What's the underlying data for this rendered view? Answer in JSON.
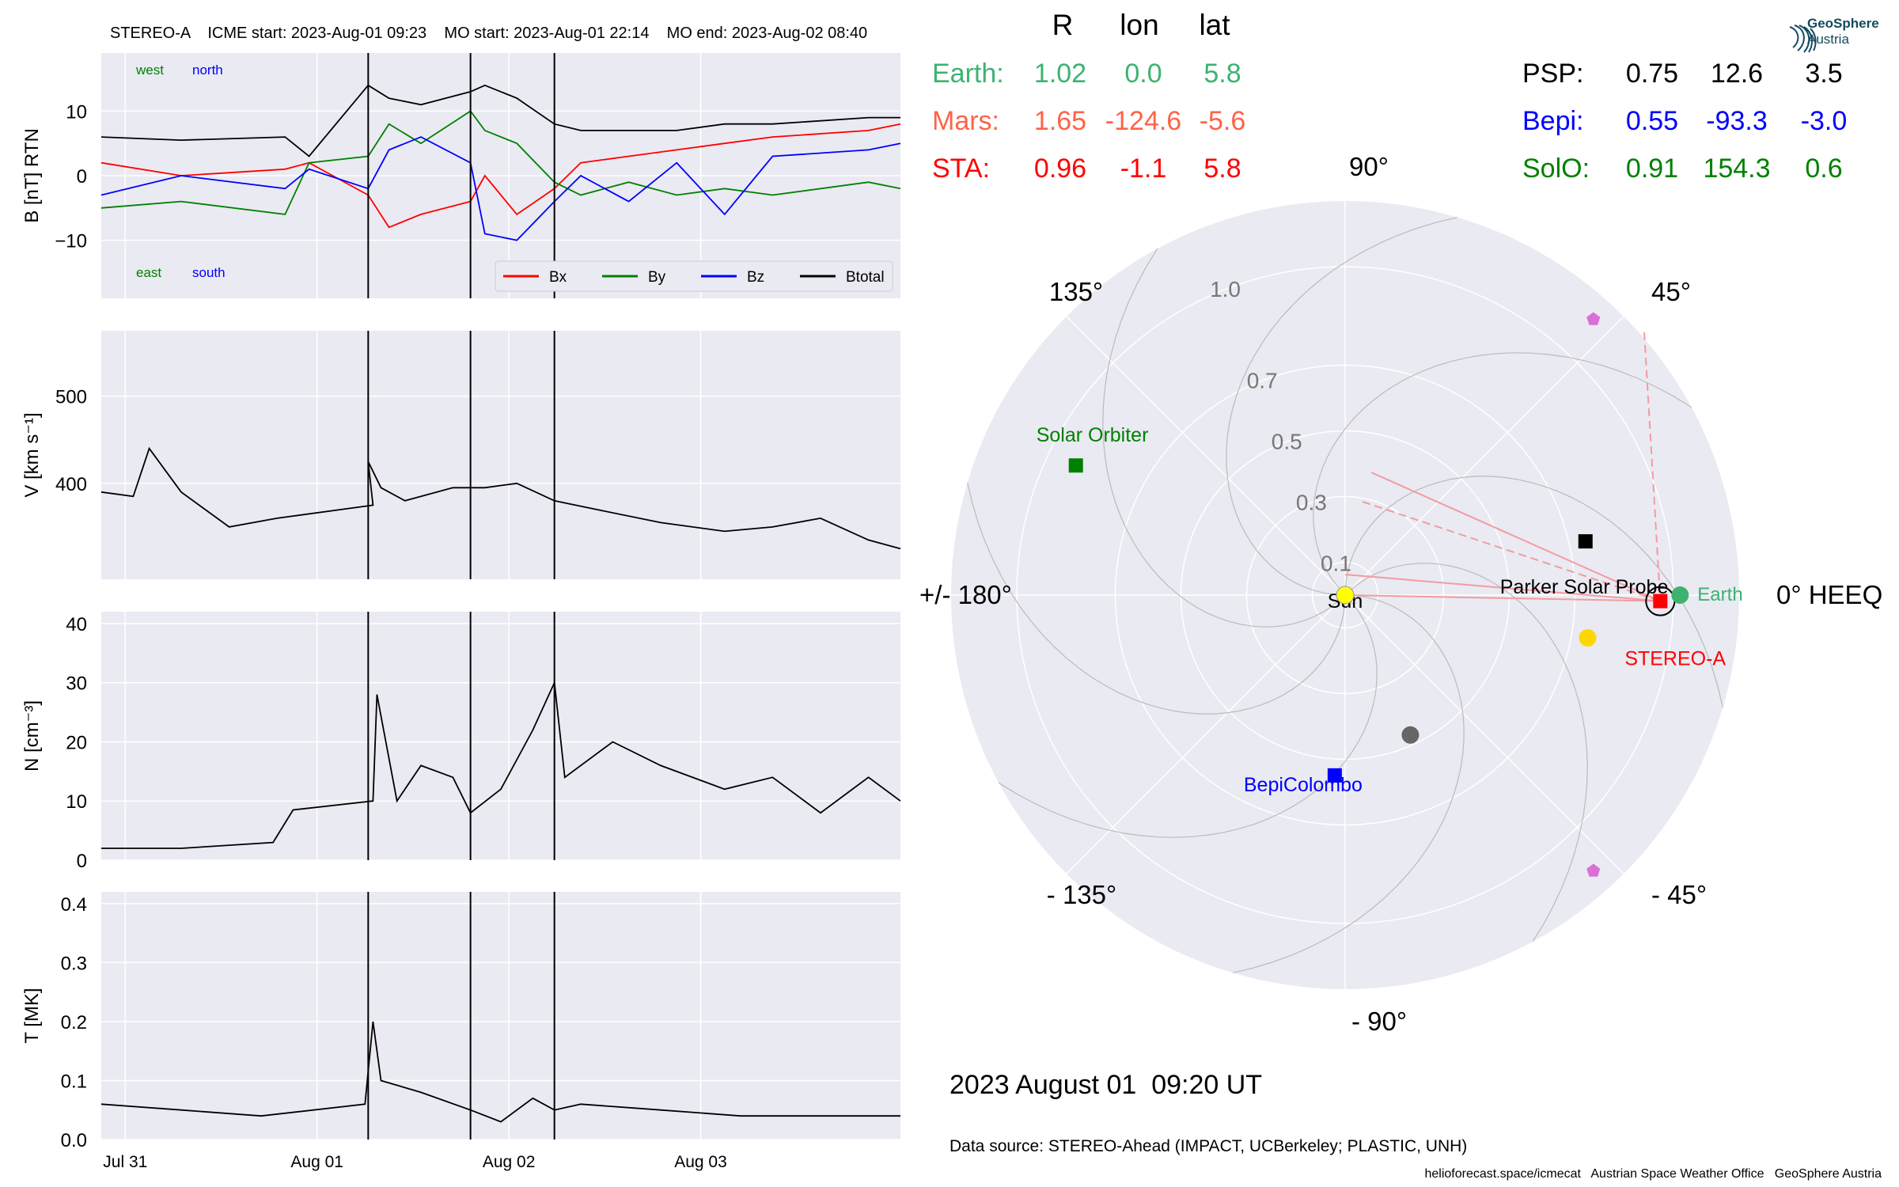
{
  "header": "STEREO-A    ICME start: 2023-Aug-01 09:23    MO start: 2023-Aug-01 22:14    MO end: 2023-Aug-02 08:40",
  "timeseries": {
    "x_ticks": [
      "Jul 31",
      "Aug 01",
      "Aug 02",
      "Aug 03"
    ],
    "event_lines_hours": [
      33.4,
      46.2,
      56.7
    ],
    "panels": [
      {
        "key": "B",
        "ylabel": "B [nT] RTN",
        "ylim": [
          -19,
          19
        ],
        "ticks": [
          10,
          0,
          -10
        ],
        "tick_labels": [
          "10",
          "0",
          "−10"
        ]
      },
      {
        "key": "V",
        "ylabel": "V [km s⁻¹]",
        "ylim": [
          290,
          575
        ],
        "ticks": [
          500,
          400
        ],
        "tick_labels": [
          "500",
          "400"
        ]
      },
      {
        "key": "N",
        "ylabel": "N [cm⁻³]",
        "ylim": [
          0,
          42
        ],
        "ticks": [
          40,
          30,
          20,
          10,
          0
        ],
        "tick_labels": [
          "40",
          "30",
          "20",
          "10",
          "0"
        ]
      },
      {
        "key": "T",
        "ylabel": "T [MK]",
        "ylim": [
          0,
          0.42
        ],
        "ticks": [
          0.4,
          0.3,
          0.2,
          0.1,
          0.0
        ],
        "tick_labels": [
          "0.4",
          "0.3",
          "0.2",
          "0.1",
          "0.0"
        ]
      }
    ],
    "b_annotations": {
      "west": "west",
      "north": "north",
      "east": "east",
      "south": "south"
    },
    "legend": [
      {
        "name": "Bx",
        "color": "#ff0000"
      },
      {
        "name": "By",
        "color": "#008000"
      },
      {
        "name": "Bz",
        "color": "#0000ff"
      },
      {
        "name": "Btotal",
        "color": "#000000"
      }
    ]
  },
  "chart_data": [
    {
      "type": "line",
      "title": "STEREO-A    ICME start: 2023-Aug-01 09:23    MO start: 2023-Aug-01 22:14    MO end: 2023-Aug-02 08:40",
      "ylabel": "B [nT] RTN",
      "x_axis": "time (hours since 2023-Jul-30 21:00 UT)",
      "ylim": [
        -19,
        19
      ],
      "series": [
        {
          "name": "Btotal",
          "color": "#000000",
          "x": [
            0,
            10,
            23,
            26,
            33.4,
            36,
            40,
            46.2,
            48,
            52,
            56.7,
            60,
            66,
            72,
            78,
            84,
            96,
            100
          ],
          "y": [
            6,
            5.5,
            6,
            3,
            14,
            12,
            11,
            13,
            14,
            12,
            8,
            7,
            7,
            7,
            8,
            8,
            9,
            9
          ]
        },
        {
          "name": "Bx",
          "color": "#ff0000",
          "x": [
            0,
            10,
            23,
            26,
            33.4,
            36,
            40,
            46.2,
            48,
            52,
            56.7,
            60,
            66,
            72,
            78,
            84,
            96,
            100
          ],
          "y": [
            2,
            0,
            1,
            2,
            -3,
            -8,
            -6,
            -4,
            0,
            -6,
            -2,
            2,
            3,
            4,
            5,
            6,
            7,
            8
          ]
        },
        {
          "name": "By",
          "color": "#008000",
          "x": [
            0,
            10,
            23,
            26,
            33.4,
            36,
            40,
            46.2,
            48,
            52,
            56.7,
            60,
            66,
            72,
            78,
            84,
            96,
            100
          ],
          "y": [
            -5,
            -4,
            -6,
            2,
            3,
            8,
            5,
            10,
            7,
            5,
            -1,
            -3,
            -1,
            -3,
            -2,
            -3,
            -1,
            -2
          ]
        },
        {
          "name": "Bz",
          "color": "#0000ff",
          "x": [
            0,
            10,
            23,
            26,
            33.4,
            36,
            40,
            46.2,
            48,
            52,
            56.7,
            60,
            66,
            72,
            78,
            84,
            96,
            100
          ],
          "y": [
            -3,
            0,
            -2,
            1,
            -2,
            4,
            6,
            2,
            -9,
            -10,
            -4,
            0,
            -4,
            2,
            -6,
            3,
            4,
            5
          ]
        }
      ]
    },
    {
      "type": "line",
      "ylabel": "V [km s⁻¹]",
      "ylim": [
        290,
        575
      ],
      "series": [
        {
          "name": "V",
          "color": "#000000",
          "x": [
            0,
            4,
            6,
            10,
            16,
            22,
            34,
            33.4,
            35,
            38,
            44,
            48,
            52,
            56.7,
            62,
            70,
            78,
            84,
            90,
            96,
            100
          ],
          "y": [
            390,
            385,
            440,
            390,
            350,
            360,
            375,
            425,
            395,
            380,
            395,
            395,
            400,
            380,
            370,
            355,
            345,
            350,
            360,
            335,
            325
          ]
        }
      ]
    },
    {
      "type": "line",
      "ylabel": "N [cm⁻³]",
      "ylim": [
        0,
        42
      ],
      "series": [
        {
          "name": "N",
          "color": "#000000",
          "x": [
            0,
            10,
            21.5,
            24,
            34,
            34.5,
            37,
            40,
            44,
            46.2,
            50,
            54,
            56.7,
            58,
            64,
            70,
            78,
            84,
            90,
            96,
            100
          ],
          "y": [
            2,
            2,
            3,
            8.5,
            10,
            28,
            10,
            16,
            14,
            8,
            12,
            22,
            30,
            14,
            20,
            16,
            12,
            14,
            8,
            14,
            10
          ]
        }
      ]
    },
    {
      "type": "line",
      "ylabel": "T [MK]",
      "ylim": [
        0,
        0.42
      ],
      "series": [
        {
          "name": "T",
          "color": "#000000",
          "x": [
            0,
            10,
            20,
            33,
            34,
            35,
            40,
            46.2,
            50,
            54,
            56.7,
            60,
            70,
            80,
            90,
            100
          ],
          "y": [
            0.06,
            0.05,
            0.04,
            0.06,
            0.2,
            0.1,
            0.08,
            0.05,
            0.03,
            0.07,
            0.05,
            0.06,
            0.05,
            0.04,
            0.04,
            0.04
          ]
        }
      ]
    }
  ],
  "polar": {
    "angle_labels": {
      "a90": "90°",
      "a45": "45°",
      "a0": "0° HEEQ",
      "am45": "- 45°",
      "am90": "- 90°",
      "am135": "- 135°",
      "a180": "+/- 180°",
      "a135": "135°"
    },
    "radial_labels": [
      "1.0",
      "0.7",
      "0.5",
      "0.3",
      "0.1"
    ],
    "radial_values": [
      1.0,
      0.7,
      0.5,
      0.3,
      0.1
    ],
    "rmax": 1.2,
    "bodies": [
      {
        "name": "Sun",
        "label": "Sun",
        "lon": 0,
        "r": 0,
        "color": "#ffff00",
        "shape": "circle"
      },
      {
        "name": "Earth",
        "label": "Earth",
        "lon": 0.0,
        "r": 1.02,
        "color": "#3cb371",
        "shape": "circle"
      },
      {
        "name": "STEREO-A",
        "label": "STEREO-A",
        "lon": -1.1,
        "r": 0.96,
        "color": "#ff0000",
        "shape": "square"
      },
      {
        "name": "Solar Orbiter",
        "label": "Solar Orbiter",
        "lon": 154.3,
        "r": 0.91,
        "color": "#008000",
        "shape": "square"
      },
      {
        "name": "BepiColombo",
        "label": "BepiColombo",
        "lon": -93.3,
        "r": 0.55,
        "color": "#0000ff",
        "shape": "square"
      },
      {
        "name": "Parker Solar Probe",
        "label": "Parker Solar Probe",
        "lon": 12.6,
        "r": 0.75,
        "color": "#000000",
        "shape": "square"
      }
    ],
    "unlabelled_markers": [
      {
        "lon": -10,
        "r": 0.75,
        "color": "#ffd700",
        "shape": "circle"
      },
      {
        "lon": -65,
        "r": 0.47,
        "color": "#666666",
        "shape": "circle"
      },
      {
        "lon": 48,
        "r": 1.13,
        "color": "#da70d6",
        "shape": "pentagon"
      },
      {
        "lon": -48,
        "r": 1.13,
        "color": "#da70d6",
        "shape": "pentagon"
      }
    ]
  },
  "pos_table": {
    "header": [
      "R",
      "lon",
      "lat"
    ],
    "left_rows": [
      {
        "name": "Earth:",
        "R": "1.02",
        "lon": "0.0",
        "lat": "5.8",
        "color": "#3cb371"
      },
      {
        "name": "Mars:",
        "R": "1.65",
        "lon": "-124.6",
        "lat": "-5.6",
        "color": "#ff6347"
      },
      {
        "name": "STA:",
        "R": "0.96",
        "lon": "-1.1",
        "lat": "5.8",
        "color": "#ff0000"
      }
    ],
    "right_rows": [
      {
        "name": "PSP:",
        "R": "0.75",
        "lon": "12.6",
        "lat": "3.5",
        "color": "#000000"
      },
      {
        "name": "Bepi:",
        "R": "0.55",
        "lon": "-93.3",
        "lat": "-3.0",
        "color": "#0000ff"
      },
      {
        "name": "SolO:",
        "R": "0.91",
        "lon": "154.3",
        "lat": "0.6",
        "color": "#008000"
      }
    ]
  },
  "date_text": "2023 August 01  09:20 UT",
  "datasource": "Data source: STEREO-Ahead (IMPACT, UCBerkeley; PLASTIC, UNH)",
  "footer": "helioforecast.space/icmecat   Austrian Space Weather Office   GeoSphere Austria",
  "logo": {
    "line1": "GeoSphere",
    "line2": "Austria"
  }
}
